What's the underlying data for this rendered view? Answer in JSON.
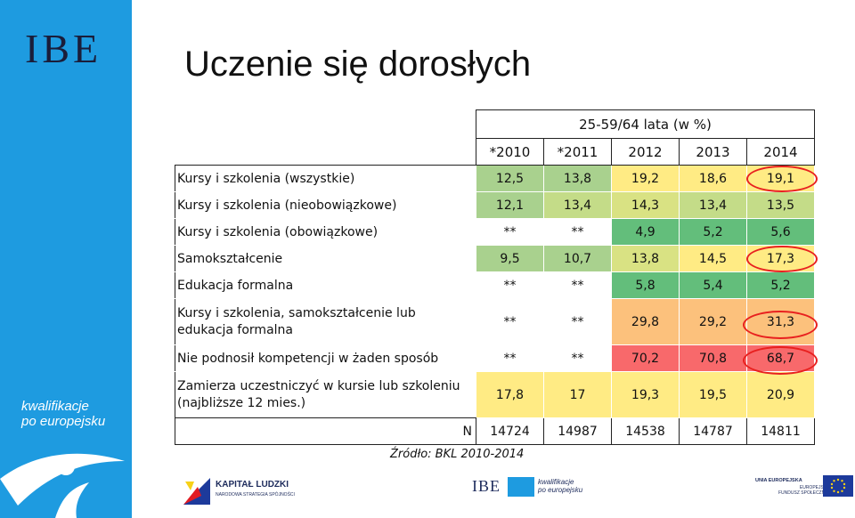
{
  "side": {
    "logo": "IBE",
    "tagline_1": "kwalifikacje",
    "tagline_2": "po europejsku"
  },
  "title": "Uczenie się dorosłych",
  "table": {
    "group_header": "25-59/64 lata (w %)",
    "years": [
      "*2010",
      "*2011",
      "2012",
      "2013",
      "2014"
    ],
    "rows": [
      {
        "label": "Kursy i szkolenia (wszystkie)",
        "values": [
          "12,5",
          "13,8",
          "19,2",
          "18,6",
          "19,1"
        ]
      },
      {
        "label": "Kursy i szkolenia (nieobowiązkowe)",
        "values": [
          "12,1",
          "13,4",
          "14,3",
          "13,4",
          "13,5"
        ]
      },
      {
        "label": "Kursy i szkolenia (obowiązkowe)",
        "values": [
          "**",
          "**",
          "4,9",
          "5,2",
          "5,6"
        ]
      },
      {
        "label": "Samokształcenie",
        "values": [
          "9,5",
          "10,7",
          "13,8",
          "14,5",
          "17,3"
        ]
      },
      {
        "label": "Edukacja formalna",
        "values": [
          "**",
          "**",
          "5,8",
          "5,4",
          "5,2"
        ]
      },
      {
        "label_1": "Kursy i szkolenia, samokształcenie lub",
        "label_2": "edukacja formalna",
        "values": [
          "**",
          "**",
          "29,8",
          "29,2",
          "31,3"
        ]
      },
      {
        "label": "Nie podnosił kompetencji w żaden sposób",
        "values": [
          "**",
          "**",
          "70,2",
          "70,8",
          "68,7"
        ]
      },
      {
        "label_1": "Zamierza uczestniczyć w kursie lub szkoleniu",
        "label_2": "(najbliższe 12 mies.)",
        "values": [
          "17,8",
          "17",
          "19,3",
          "19,5",
          "20,9"
        ]
      }
    ],
    "n_label": "N",
    "n_values": [
      "14724",
      "14987",
      "14538",
      "14787",
      "14811"
    ],
    "colors": {
      "green_dark": "#63be7b",
      "green_light": "#a9d18e",
      "yellow": "#ffeb84",
      "orange": "#fcc17c",
      "red": "#f8696b",
      "highlight_ring": "#e8201f"
    }
  },
  "source": "Źródło: BKL 2010-2014",
  "footer": {
    "kl_title": "KAPITAŁ LUDZKI",
    "kl_sub": "NARODOWA STRATEGIA SPÓJNOŚCI",
    "ibe_logo": "IBE",
    "ibe_tag_1": "kwalifikacje",
    "ibe_tag_2": "po europejsku",
    "ue_title": "UNIA EUROPEJSKA",
    "ue_sub_1": "EUROPEJSKI",
    "ue_sub_2": "FUNDUSZ SPOŁECZNY"
  }
}
